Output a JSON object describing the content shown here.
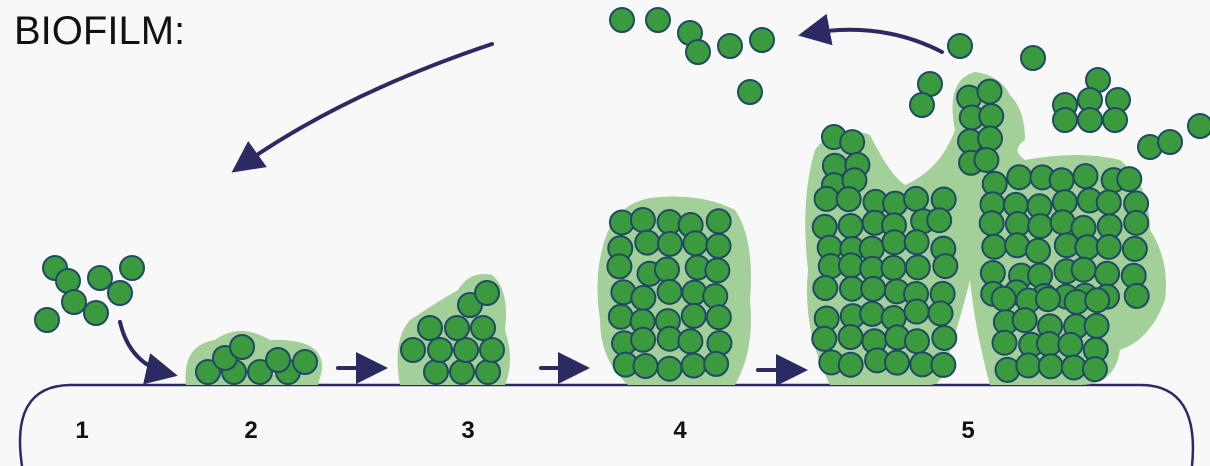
{
  "title": "BIOFILM:",
  "stages": [
    "1",
    "2",
    "3",
    "4",
    "5"
  ]
}
